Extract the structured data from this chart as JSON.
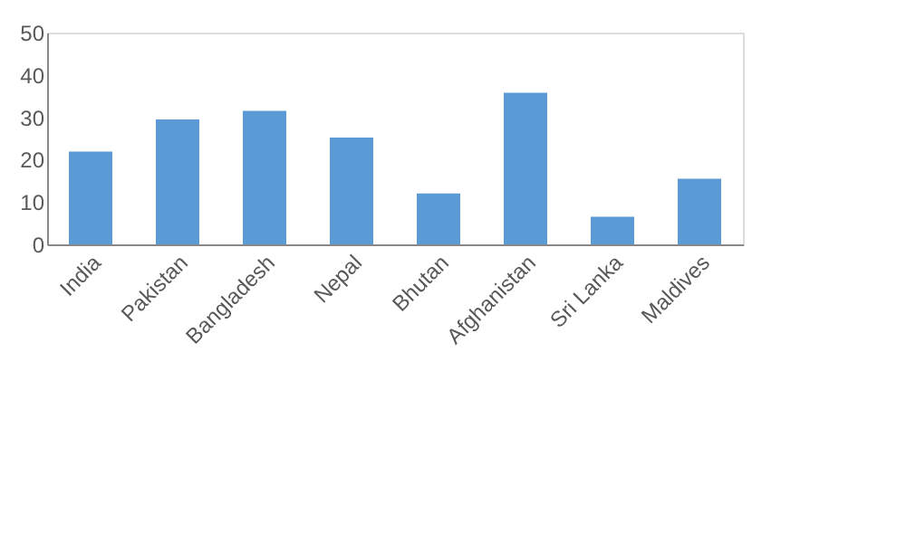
{
  "chart_data": {
    "type": "bar",
    "categories": [
      "India",
      "Pakistan",
      "Bangladesh",
      "Nepal",
      "Bhutan",
      "Afghanistan",
      "Sri Lanka",
      "Maldives"
    ],
    "values": [
      21.9,
      29.5,
      31.5,
      25.2,
      12.0,
      35.8,
      6.5,
      15.5
    ],
    "color": "#5b9bd5",
    "ylim": [
      0,
      50
    ],
    "yticks": [
      0,
      10,
      20,
      30,
      40,
      50
    ],
    "grid": false
  }
}
